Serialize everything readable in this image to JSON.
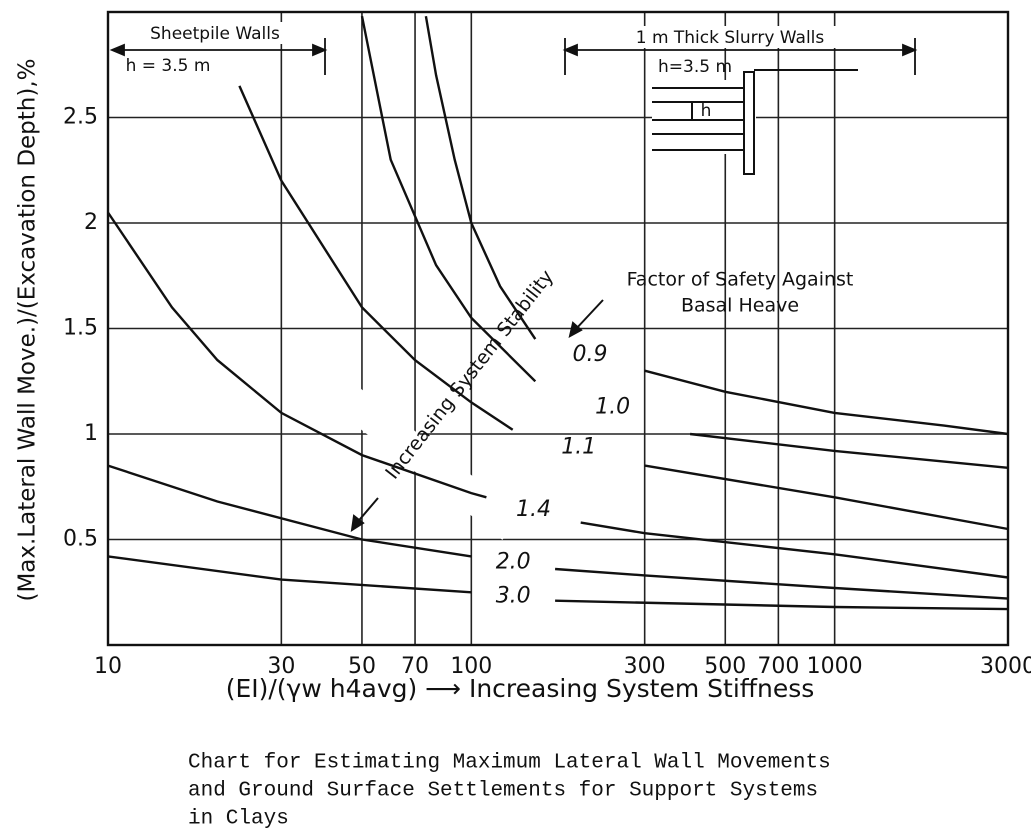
{
  "chart_data": {
    "type": "line",
    "ylabel": "(Max.Lateral Wall Move.)/(Excavation Depth),%",
    "xlabel": "(EI)/(γw h4avg) ⟶ Increasing System Stiffness",
    "caption": [
      "Chart for Estimating Maximum Lateral Wall Movements",
      "and Ground Surface Settlements for Support Systems",
      "in Clays"
    ],
    "log_x": true,
    "grid": true,
    "xlim": [
      10,
      3000
    ],
    "xticks": [
      10,
      30,
      50,
      70,
      100,
      300,
      500,
      700,
      1000,
      3000
    ],
    "ylim": [
      0,
      3
    ],
    "yticks": [
      0.5,
      1.0,
      1.5,
      2.0,
      2.5
    ],
    "legend_title": [
      "Factor of Safety Against",
      "Basal Heave"
    ],
    "annotations": [
      "Sheetpile Walls",
      "h = 3.5 m",
      "1 m Thick Slurry Walls",
      "h=3.5 m",
      "h",
      "Increasing System Stability"
    ],
    "series": [
      {
        "name": "0.9",
        "color": "#111111",
        "x": [
          75,
          80,
          90,
          100,
          120,
          150,
          null,
          300,
          500,
          1000,
          2000,
          3000
        ],
        "values": [
          2.98,
          2.7,
          2.3,
          2.0,
          1.7,
          1.45,
          null,
          1.3,
          1.2,
          1.1,
          1.04,
          1.0
        ]
      },
      {
        "name": "1.0",
        "color": "#111111",
        "x": [
          50,
          60,
          80,
          100,
          150,
          null,
          400,
          1000,
          3000
        ],
        "values": [
          2.98,
          2.3,
          1.8,
          1.55,
          1.25,
          null,
          1.0,
          0.92,
          0.84
        ]
      },
      {
        "name": "1.1",
        "color": "#111111",
        "x": [
          23,
          30,
          50,
          70,
          100,
          130,
          null,
          300,
          1000,
          3000
        ],
        "values": [
          2.65,
          2.2,
          1.6,
          1.35,
          1.15,
          1.02,
          null,
          0.85,
          0.7,
          0.55
        ]
      },
      {
        "name": "1.4",
        "color": "#111111",
        "x": [
          10,
          15,
          20,
          30,
          50,
          100,
          110,
          null,
          200,
          300,
          1000,
          3000
        ],
        "values": [
          2.05,
          1.6,
          1.35,
          1.1,
          0.9,
          0.72,
          0.7,
          null,
          0.58,
          0.53,
          0.43,
          0.32
        ]
      },
      {
        "name": "2.0",
        "color": "#111111",
        "x": [
          10,
          20,
          50,
          100,
          null,
          170,
          300,
          1000,
          3000
        ],
        "values": [
          0.85,
          0.68,
          0.5,
          0.42,
          null,
          0.36,
          0.33,
          0.27,
          0.22
        ]
      },
      {
        "name": "3.0",
        "color": "#111111",
        "x": [
          10,
          30,
          100,
          null,
          170,
          1000,
          3000
        ],
        "values": [
          0.42,
          0.31,
          0.25,
          null,
          0.21,
          0.18,
          0.17
        ]
      }
    ]
  }
}
